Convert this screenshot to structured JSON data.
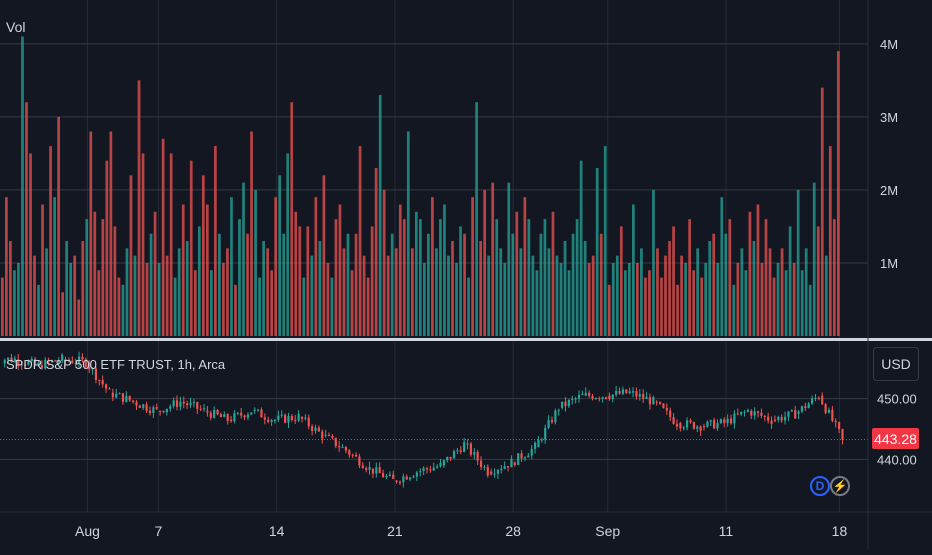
{
  "volume_pane": {
    "label": "Vol"
  },
  "price_pane": {
    "legend": "SPDR S&P 500 ETF TRUST, 1h, Arca"
  },
  "currency_button": "USD",
  "last_price": "443.28",
  "badges": {
    "dividend": "D",
    "earnings": "⚡"
  },
  "colors": {
    "background": "#131722",
    "up": "#26a69a",
    "down": "#ef5350",
    "grid": "#363a45",
    "last_price": "#f23645",
    "dividend": "#2962ff"
  },
  "chart_data": [
    {
      "type": "bar",
      "title": "Vol",
      "ylim": [
        0,
        4600000
      ],
      "yticks": [
        1000000,
        2000000,
        3000000,
        4000000
      ],
      "ytick_labels": [
        "1M",
        "2M",
        "3M",
        "4M"
      ],
      "approx_volumes_millions": [
        0.8,
        1.9,
        1.3,
        0.9,
        1.0,
        4.1,
        3.2,
        2.5,
        1.1,
        0.7,
        1.8,
        1.2,
        2.6,
        1.9,
        3.0,
        0.6,
        1.3,
        1.0,
        1.1,
        0.5,
        1.3,
        1.6,
        2.8,
        1.7,
        0.9,
        1.6,
        2.4,
        2.8,
        1.5,
        0.8,
        0.7,
        1.2,
        2.2,
        1.1,
        3.5,
        2.5,
        1.0,
        1.4,
        1.7,
        1.0,
        2.7,
        1.1,
        2.5,
        0.8,
        1.2,
        1.8,
        1.3,
        2.4,
        0.9,
        1.5,
        2.2,
        1.8,
        0.9,
        2.6,
        1.4,
        1.0,
        1.2,
        1.9,
        0.7,
        1.6,
        2.1,
        1.4,
        2.8,
        2.0,
        0.8,
        1.3,
        1.2,
        0.9,
        1.9,
        2.2,
        1.4,
        2.5,
        3.2,
        1.7,
        1.5,
        0.8,
        1.5,
        1.1,
        1.9,
        1.3,
        2.2,
        1.0,
        0.8,
        1.6,
        1.8,
        1.2,
        1.4,
        0.9,
        1.4,
        2.6,
        1.1,
        0.8,
        1.5,
        2.3,
        3.3,
        2.0,
        1.1,
        1.4,
        1.2,
        1.8,
        1.6,
        2.8,
        1.2,
        1.7,
        1.6,
        1.0,
        1.4,
        1.9,
        1.2,
        1.6,
        1.8,
        1.1,
        1.3,
        1.0,
        1.5,
        1.4,
        0.8,
        1.9,
        3.2,
        1.3,
        2.0,
        1.1,
        2.1,
        1.6,
        1.2,
        1.0,
        2.1,
        1.4,
        1.7,
        1.2,
        1.9,
        1.6,
        1.1,
        0.9,
        1.4,
        1.6,
        1.2,
        1.7,
        1.1,
        1.0,
        1.3,
        0.9,
        1.4,
        1.6,
        2.4,
        1.3,
        1.0,
        1.1,
        2.3,
        1.4,
        2.6,
        0.7,
        1.0,
        1.1,
        1.5,
        0.9,
        1.0,
        1.8,
        1.0,
        1.2,
        0.8,
        0.9,
        2.0,
        1.2,
        0.8,
        1.1,
        1.3,
        1.5,
        0.7,
        1.1,
        1.0,
        1.6,
        0.9,
        1.2,
        0.8,
        1.0,
        1.3,
        1.4,
        1.0,
        1.9,
        1.4,
        1.6,
        0.7,
        1.0,
        1.2,
        0.9,
        1.7,
        1.3,
        1.8,
        1.0,
        1.6,
        1.2,
        0.8,
        1.0,
        1.2,
        0.9,
        1.5,
        1.0,
        2.0,
        0.9,
        1.2,
        0.7,
        2.1,
        1.5,
        3.4,
        1.1,
        2.6,
        1.6,
        3.9
      ]
    },
    {
      "type": "candlestick",
      "title": "SPDR S&P 500 ETF TRUST, 1h, Arca",
      "ylim": [
        432,
        459
      ],
      "yticks": [
        440,
        450
      ],
      "ytick_labels": [
        "440.00",
        "450.00"
      ],
      "last_price": 443.28,
      "x_tick_labels": [
        "Aug",
        "7",
        "14",
        "21",
        "28",
        "Sep",
        "11",
        "18"
      ],
      "approx_close_path": [
        {
          "date": "Jul 27",
          "close": 456.5
        },
        {
          "date": "Jul 28",
          "close": 455.5
        },
        {
          "date": "Jul 31",
          "close": 456.5
        },
        {
          "date": "Aug 1",
          "close": 456.0
        },
        {
          "date": "Aug 2",
          "close": 451.0
        },
        {
          "date": "Aug 3",
          "close": 449.5
        },
        {
          "date": "Aug 4",
          "close": 448.0
        },
        {
          "date": "Aug 7",
          "close": 449.5
        },
        {
          "date": "Aug 8",
          "close": 448.0
        },
        {
          "date": "Aug 9",
          "close": 446.5
        },
        {
          "date": "Aug 10",
          "close": 448.0
        },
        {
          "date": "Aug 11",
          "close": 446.5
        },
        {
          "date": "Aug 14",
          "close": 447.0
        },
        {
          "date": "Aug 15",
          "close": 444.0
        },
        {
          "date": "Aug 16",
          "close": 441.5
        },
        {
          "date": "Aug 17",
          "close": 438.5
        },
        {
          "date": "Aug 18",
          "close": 436.5
        },
        {
          "date": "Aug 21",
          "close": 438.0
        },
        {
          "date": "Aug 22",
          "close": 439.0
        },
        {
          "date": "Aug 23",
          "close": 442.5
        },
        {
          "date": "Aug 24",
          "close": 438.0
        },
        {
          "date": "Aug 25",
          "close": 439.5
        },
        {
          "date": "Aug 28",
          "close": 442.0
        },
        {
          "date": "Aug 29",
          "close": 448.5
        },
        {
          "date": "Aug 30",
          "close": 450.5
        },
        {
          "date": "Aug 31",
          "close": 450.5
        },
        {
          "date": "Sep 1",
          "close": 451.0
        },
        {
          "date": "Sep 5",
          "close": 449.5
        },
        {
          "date": "Sep 6",
          "close": 446.0
        },
        {
          "date": "Sep 7",
          "close": 445.5
        },
        {
          "date": "Sep 8",
          "close": 446.0
        },
        {
          "date": "Sep 11",
          "close": 448.0
        },
        {
          "date": "Sep 12",
          "close": 446.5
        },
        {
          "date": "Sep 13",
          "close": 447.5
        },
        {
          "date": "Sep 14",
          "close": 450.5
        },
        {
          "date": "Sep 15",
          "close": 443.3
        }
      ]
    }
  ]
}
